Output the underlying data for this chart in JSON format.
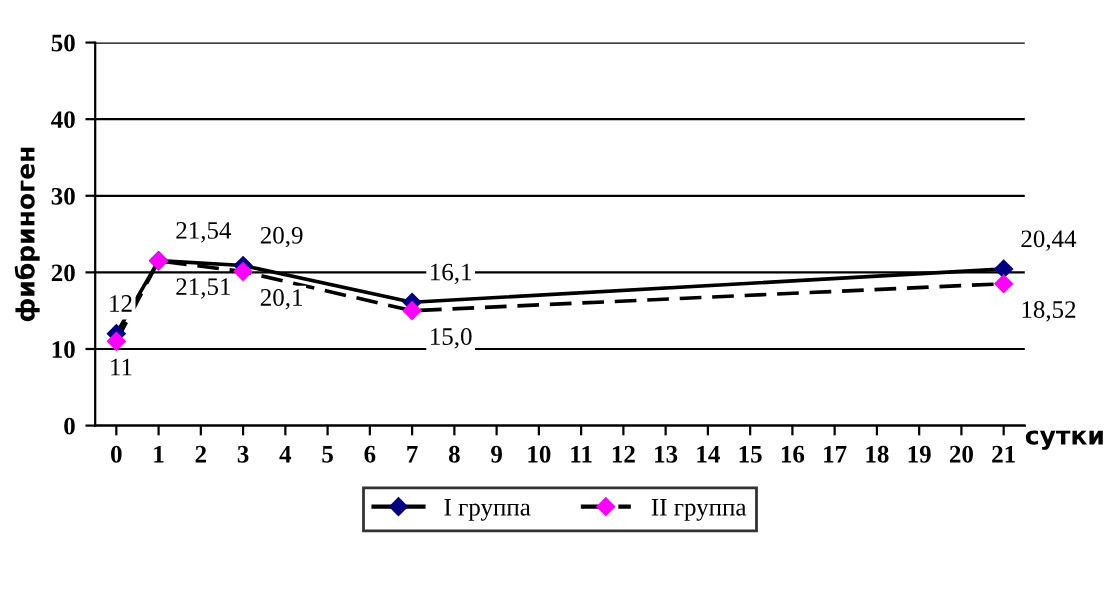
{
  "chart_data": {
    "type": "line",
    "xlabel": "сутки",
    "ylabel": "фибриноген",
    "categories": [
      "0",
      "1",
      "2",
      "3",
      "4",
      "5",
      "6",
      "7",
      "8",
      "9",
      "10",
      "11",
      "12",
      "13",
      "14",
      "15",
      "16",
      "17",
      "18",
      "19",
      "20",
      "21"
    ],
    "series": [
      {
        "name": "I группа",
        "color": "#000080",
        "line_style": "solid",
        "values": [
          12,
          21.54,
          null,
          20.9,
          null,
          null,
          null,
          16.1,
          null,
          null,
          null,
          null,
          null,
          null,
          null,
          null,
          null,
          null,
          null,
          null,
          null,
          20.44
        ],
        "value_labels": [
          "12",
          "21,54",
          null,
          "20,9",
          null,
          null,
          null,
          "16,1",
          null,
          null,
          null,
          null,
          null,
          null,
          null,
          null,
          null,
          null,
          null,
          null,
          null,
          "20,44"
        ]
      },
      {
        "name": "II группа",
        "color": "#ff00ff",
        "line_style": "dashed",
        "values": [
          11,
          21.51,
          null,
          20.1,
          null,
          null,
          null,
          15.0,
          null,
          null,
          null,
          null,
          null,
          null,
          null,
          null,
          null,
          null,
          null,
          null,
          null,
          18.52
        ],
        "value_labels": [
          "11",
          "21,51",
          null,
          "20,1",
          null,
          null,
          null,
          "15,0",
          null,
          null,
          null,
          null,
          null,
          null,
          null,
          null,
          null,
          null,
          null,
          null,
          null,
          "18,52"
        ]
      }
    ],
    "ylim": [
      0,
      50
    ],
    "yticks": [
      0,
      10,
      20,
      30,
      40,
      50
    ],
    "grid": "y",
    "legend": "bottom",
    "marker": "diamond"
  }
}
